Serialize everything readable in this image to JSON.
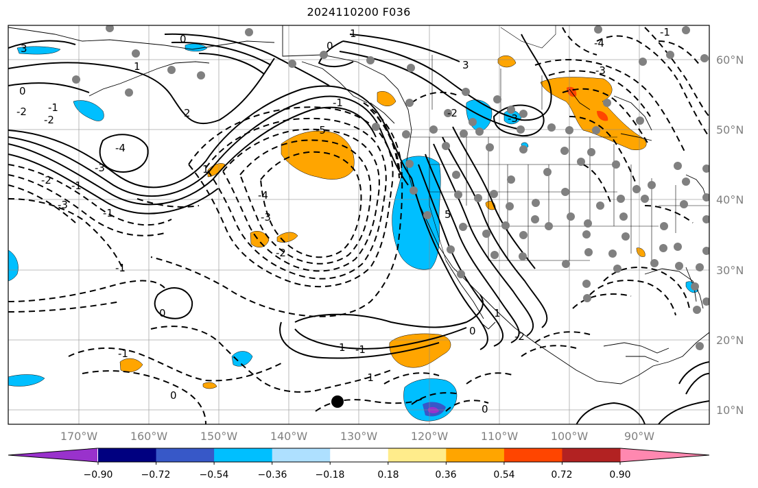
{
  "title": "2024110200 F036",
  "lon_labels": [
    "170°W",
    "160°W",
    "150°W",
    "140°W",
    "130°W",
    "120°W",
    "110°W",
    "100°W",
    "90°W"
  ],
  "lat_labels": [
    "60°N",
    "50°N",
    "40°N",
    "30°N",
    "20°N",
    "10°N"
  ],
  "colorbar": {
    "colors": [
      "#9932cc",
      "#000080",
      "#3758c8",
      "#00bfff",
      "#aee0ff",
      "#ffffff",
      "#ffec8b",
      "#ffa500",
      "#ff4500",
      "#b22222",
      "#ff88b0"
    ],
    "tick_labels": [
      "−0.90",
      "−0.72",
      "−0.54",
      "−0.36",
      "−0.18",
      "0.18",
      "0.36",
      "0.54",
      "0.72",
      "0.90"
    ]
  },
  "contour_labels": [
    {
      "text": "3"
    },
    {
      "text": "0"
    },
    {
      "text": "-1"
    },
    {
      "text": "-2"
    },
    {
      "text": "-2"
    },
    {
      "text": "1"
    },
    {
      "text": "-4"
    },
    {
      "text": "-3"
    },
    {
      "text": "-2"
    },
    {
      "text": "-3"
    },
    {
      "text": "-1"
    },
    {
      "text": "-1"
    },
    {
      "text": "2"
    },
    {
      "text": "-5"
    },
    {
      "text": "-4"
    },
    {
      "text": "-3"
    },
    {
      "text": "-2"
    },
    {
      "text": "-1"
    },
    {
      "text": "1"
    },
    {
      "text": "0"
    },
    {
      "text": "-1"
    },
    {
      "text": "1"
    },
    {
      "text": "0"
    },
    {
      "text": "0"
    },
    {
      "text": "-1"
    },
    {
      "text": "-1"
    },
    {
      "text": "0"
    },
    {
      "text": "1"
    },
    {
      "text": "3"
    },
    {
      "text": "5"
    },
    {
      "text": "-2"
    },
    {
      "text": "-3"
    },
    {
      "text": "1"
    },
    {
      "text": "-2"
    },
    {
      "text": "0"
    },
    {
      "text": "0"
    },
    {
      "text": "-1"
    },
    {
      "text": "-3"
    },
    {
      "text": "-4"
    },
    {
      "text": "-1"
    }
  ],
  "colors": {
    "orange": "#ffa500",
    "red": "#ff4500",
    "blue": "#00bfff",
    "navy": "#000080",
    "purple": "#9932cc",
    "dot": "#808080"
  }
}
